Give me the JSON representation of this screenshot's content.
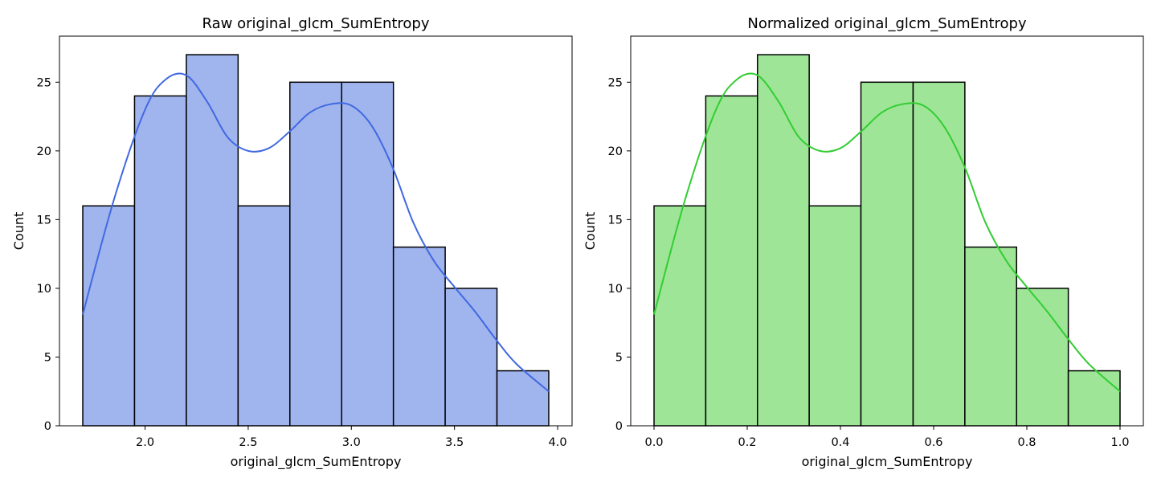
{
  "chart_data": [
    {
      "type": "bar",
      "title": "Raw original_glcm_SumEntropy",
      "xlabel": "original_glcm_SumEntropy",
      "ylabel": "Count",
      "xlim": [
        1.585,
        4.07
      ],
      "ylim": [
        0,
        28.35
      ],
      "xticks": [
        2.0,
        2.5,
        3.0,
        3.5,
        4.0
      ],
      "xtick_labels": [
        "2.0",
        "2.5",
        "3.0",
        "3.5",
        "4.0"
      ],
      "yticks": [
        0,
        5,
        10,
        15,
        20,
        25
      ],
      "yticks_labels": [
        "0",
        "5",
        "10",
        "15",
        "20",
        "25"
      ],
      "bin_edges": [
        1.698,
        1.949,
        2.2,
        2.451,
        2.702,
        2.953,
        3.204,
        3.455,
        3.706,
        3.957
      ],
      "values": [
        16,
        24,
        27,
        16,
        25,
        25,
        13,
        10,
        4
      ],
      "kde_x": [
        1.698,
        1.85,
        2.0,
        2.1,
        2.2,
        2.3,
        2.4,
        2.5,
        2.6,
        2.7,
        2.8,
        2.9,
        3.0,
        3.1,
        3.2,
        3.3,
        3.4,
        3.5,
        3.6,
        3.7,
        3.8,
        3.957
      ],
      "kde_y": [
        8.1,
        16.5,
        23.0,
        25.2,
        25.5,
        23.6,
        21.0,
        20.0,
        20.2,
        21.4,
        22.8,
        23.4,
        23.3,
        21.8,
        18.8,
        14.8,
        12.0,
        10.1,
        8.3,
        6.3,
        4.5,
        2.5
      ],
      "bar_color": "#a0b4ee",
      "line_color": "#4169e1",
      "edge_color": "#000000",
      "grid": false
    },
    {
      "type": "bar",
      "title": "Normalized original_glcm_SumEntropy",
      "xlabel": "original_glcm_SumEntropy",
      "ylabel": "Count",
      "xlim": [
        -0.05,
        1.05
      ],
      "ylim": [
        0,
        28.35
      ],
      "xticks": [
        0.0,
        0.2,
        0.4,
        0.6,
        0.8,
        1.0
      ],
      "xtick_labels": [
        "0.0",
        "0.2",
        "0.4",
        "0.6",
        "0.8",
        "1.0"
      ],
      "yticks": [
        0,
        5,
        10,
        15,
        20,
        25
      ],
      "yticks_labels": [
        "0",
        "5",
        "10",
        "15",
        "20",
        "25"
      ],
      "bin_edges": [
        0.0,
        0.111,
        0.222,
        0.333,
        0.444,
        0.556,
        0.667,
        0.778,
        0.889,
        1.0
      ],
      "values": [
        16,
        24,
        27,
        16,
        25,
        25,
        13,
        10,
        4
      ],
      "kde_x": [
        0.0,
        0.067,
        0.133,
        0.178,
        0.222,
        0.267,
        0.311,
        0.356,
        0.4,
        0.444,
        0.489,
        0.533,
        0.578,
        0.622,
        0.667,
        0.711,
        0.756,
        0.8,
        0.844,
        0.889,
        0.933,
        1.0
      ],
      "kde_y": [
        8.1,
        16.5,
        23.0,
        25.2,
        25.5,
        23.6,
        21.0,
        20.0,
        20.2,
        21.4,
        22.8,
        23.4,
        23.3,
        21.8,
        18.8,
        14.8,
        12.0,
        10.1,
        8.3,
        6.3,
        4.5,
        2.5
      ],
      "bar_color": "#9ee597",
      "line_color": "#32cd32",
      "edge_color": "#000000",
      "grid": false
    }
  ]
}
